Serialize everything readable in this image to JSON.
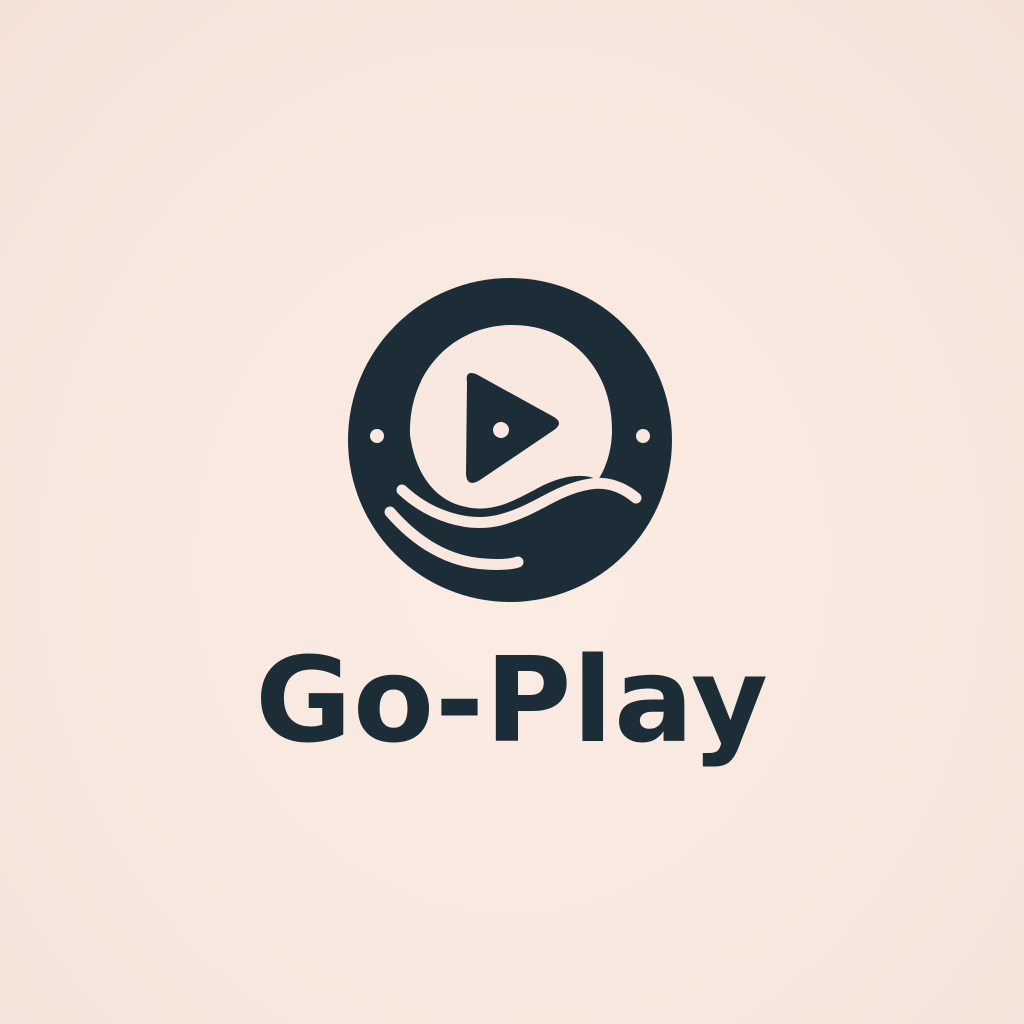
{
  "brand": {
    "name": "Go-Play",
    "primary_color": "#1c2d38",
    "background_color": "#f8e8df"
  },
  "emblem": {
    "icon": "play-button-wave-logo-icon"
  }
}
